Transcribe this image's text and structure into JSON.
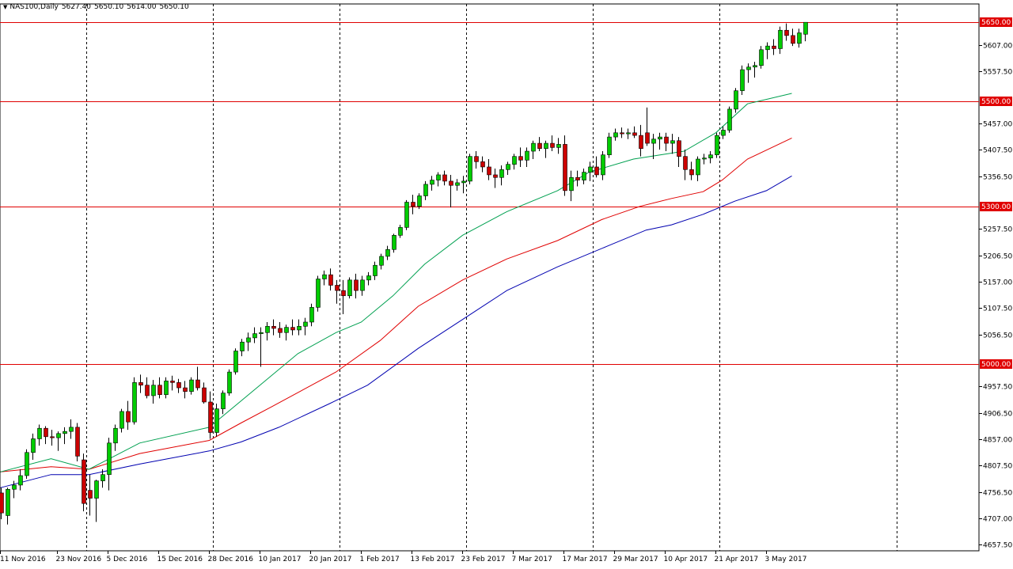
{
  "header": {
    "symbol": "NAS100,Daily",
    "open": "5627.40",
    "high": "5650.10",
    "low": "5614.00",
    "close": "5650.10"
  },
  "colors": {
    "background": "#ffffff",
    "axis": "#000000",
    "bull": "#00cc00",
    "bear": "#cc0000",
    "wick": "#000000",
    "hline": "#e00000",
    "ma_green": "#00a050",
    "ma_red": "#e00000",
    "ma_blue": "#0000b0",
    "label_bg": "#e00000",
    "label_text": "#ffffff"
  },
  "chart_data": {
    "type": "candlestick",
    "y_ticks": [
      "5607.00",
      "5557.50",
      "5457.00",
      "5407.50",
      "5356.50",
      "5257.50",
      "5206.50",
      "5157.00",
      "5107.50",
      "5056.50",
      "4957.50",
      "4906.50",
      "4857.00",
      "4807.50",
      "4756.50",
      "4707.00",
      "4657.50"
    ],
    "y_tick_values": [
      5607.0,
      5557.5,
      5457.0,
      5407.5,
      5356.5,
      5257.5,
      5206.5,
      5157.0,
      5107.5,
      5056.5,
      4957.5,
      4906.5,
      4857.0,
      4807.5,
      4756.5,
      4707.0,
      4657.5
    ],
    "ylim": [
      4645,
      5685
    ],
    "x_labels": [
      {
        "label": "11 Nov 2016",
        "bar": 0
      },
      {
        "label": "23 Nov 2016",
        "bar": 9
      },
      {
        "label": "5 Dec 2016",
        "bar": 17
      },
      {
        "label": "15 Dec 2016",
        "bar": 25
      },
      {
        "label": "28 Dec 2016",
        "bar": 33
      },
      {
        "label": "10 Jan 2017",
        "bar": 41
      },
      {
        "label": "20 Jan 2017",
        "bar": 49
      },
      {
        "label": "1 Feb 2017",
        "bar": 57
      },
      {
        "label": "13 Feb 2017",
        "bar": 65
      },
      {
        "label": "23 Feb 2017",
        "bar": 73
      },
      {
        "label": "7 Mar 2017",
        "bar": 81
      },
      {
        "label": "17 Mar 2017",
        "bar": 89
      },
      {
        "label": "29 Mar 2017",
        "bar": 97
      },
      {
        "label": "10 Apr 2017",
        "bar": 105
      },
      {
        "label": "21 Apr 2017",
        "bar": 113
      },
      {
        "label": "3 May 2017",
        "bar": 121
      }
    ],
    "vertical_lines_at_bar": [
      13.5,
      33.5,
      53.5,
      73.5,
      93.5,
      113.5,
      141.5
    ],
    "horizontal_levels": [
      {
        "value": 5650.0,
        "label": "5650.00"
      },
      {
        "value": 5500.0,
        "label": "5500.00"
      },
      {
        "value": 5300.0,
        "label": "5300.00"
      },
      {
        "value": 5000.0,
        "label": "5000.00"
      }
    ],
    "candles": [
      [
        4755,
        4765,
        4705,
        4717
      ],
      [
        4712,
        4765,
        4695,
        4762
      ],
      [
        4762,
        4778,
        4745,
        4770
      ],
      [
        4770,
        4800,
        4760,
        4788
      ],
      [
        4788,
        4838,
        4782,
        4832
      ],
      [
        4832,
        4868,
        4818,
        4858
      ],
      [
        4858,
        4885,
        4845,
        4878
      ],
      [
        4878,
        4882,
        4848,
        4862
      ],
      [
        4862,
        4875,
        4845,
        4860
      ],
      [
        4860,
        4872,
        4835,
        4868
      ],
      [
        4868,
        4880,
        4848,
        4872
      ],
      [
        4872,
        4895,
        4858,
        4880
      ],
      [
        4880,
        4888,
        4815,
        4825
      ],
      [
        4818,
        4830,
        4720,
        4735
      ],
      [
        4760,
        4790,
        4712,
        4745
      ],
      [
        4745,
        4780,
        4700,
        4778
      ],
      [
        4778,
        4800,
        4765,
        4790
      ],
      [
        4790,
        4860,
        4760,
        4850
      ],
      [
        4850,
        4885,
        4835,
        4878
      ],
      [
        4878,
        4915,
        4870,
        4910
      ],
      [
        4910,
        4930,
        4875,
        4890
      ],
      [
        4890,
        4975,
        4885,
        4965
      ],
      [
        4965,
        4980,
        4945,
        4960
      ],
      [
        4960,
        4975,
        4935,
        4940
      ],
      [
        4940,
        4970,
        4925,
        4960
      ],
      [
        4960,
        4975,
        4935,
        4942
      ],
      [
        4942,
        4975,
        4935,
        4968
      ],
      [
        4968,
        4978,
        4950,
        4965
      ],
      [
        4965,
        4972,
        4945,
        4955
      ],
      [
        4955,
        4968,
        4935,
        4948
      ],
      [
        4948,
        4975,
        4942,
        4970
      ],
      [
        4970,
        4995,
        4950,
        4955
      ],
      [
        4955,
        4965,
        4925,
        4928
      ],
      [
        4928,
        4948,
        4858,
        4870
      ],
      [
        4870,
        4925,
        4862,
        4915
      ],
      [
        4915,
        4950,
        4905,
        4945
      ],
      [
        4945,
        4990,
        4940,
        4985
      ],
      [
        4985,
        5030,
        4980,
        5025
      ],
      [
        5025,
        5048,
        5015,
        5042
      ],
      [
        5042,
        5060,
        5025,
        5050
      ],
      [
        5050,
        5070,
        5040,
        5058
      ],
      [
        5058,
        5070,
        4995,
        5060
      ],
      [
        5060,
        5080,
        5045,
        5072
      ],
      [
        5072,
        5085,
        5055,
        5068
      ],
      [
        5068,
        5080,
        5050,
        5060
      ],
      [
        5060,
        5075,
        5045,
        5070
      ],
      [
        5070,
        5085,
        5055,
        5065
      ],
      [
        5065,
        5085,
        5055,
        5072
      ],
      [
        5072,
        5088,
        5055,
        5080
      ],
      [
        5080,
        5115,
        5072,
        5108
      ],
      [
        5108,
        5168,
        5100,
        5162
      ],
      [
        5162,
        5178,
        5150,
        5170
      ],
      [
        5170,
        5182,
        5140,
        5150
      ],
      [
        5150,
        5160,
        5115,
        5140
      ],
      [
        5140,
        5160,
        5095,
        5130
      ],
      [
        5130,
        5165,
        5125,
        5160
      ],
      [
        5160,
        5172,
        5125,
        5140
      ],
      [
        5140,
        5168,
        5130,
        5160
      ],
      [
        5160,
        5175,
        5150,
        5168
      ],
      [
        5168,
        5195,
        5160,
        5188
      ],
      [
        5188,
        5210,
        5180,
        5205
      ],
      [
        5205,
        5225,
        5198,
        5218
      ],
      [
        5218,
        5248,
        5212,
        5245
      ],
      [
        5245,
        5265,
        5240,
        5260
      ],
      [
        5260,
        5312,
        5255,
        5308
      ],
      [
        5308,
        5322,
        5285,
        5300
      ],
      [
        5300,
        5325,
        5295,
        5320
      ],
      [
        5320,
        5348,
        5312,
        5342
      ],
      [
        5342,
        5358,
        5330,
        5350
      ],
      [
        5350,
        5365,
        5338,
        5360
      ],
      [
        5360,
        5368,
        5340,
        5348
      ],
      [
        5348,
        5360,
        5298,
        5340
      ],
      [
        5340,
        5352,
        5330,
        5345
      ],
      [
        5345,
        5358,
        5325,
        5348
      ],
      [
        5348,
        5400,
        5342,
        5395
      ],
      [
        5395,
        5405,
        5372,
        5385
      ],
      [
        5385,
        5395,
        5365,
        5375
      ],
      [
        5375,
        5390,
        5350,
        5360
      ],
      [
        5360,
        5372,
        5335,
        5355
      ],
      [
        5355,
        5378,
        5340,
        5370
      ],
      [
        5370,
        5385,
        5360,
        5380
      ],
      [
        5380,
        5400,
        5370,
        5395
      ],
      [
        5395,
        5412,
        5375,
        5388
      ],
      [
        5388,
        5412,
        5375,
        5405
      ],
      [
        5405,
        5425,
        5390,
        5420
      ],
      [
        5420,
        5432,
        5405,
        5410
      ],
      [
        5410,
        5425,
        5392,
        5420
      ],
      [
        5420,
        5435,
        5405,
        5412
      ],
      [
        5412,
        5430,
        5400,
        5418
      ],
      [
        5418,
        5435,
        5320,
        5330
      ],
      [
        5330,
        5368,
        5310,
        5355
      ],
      [
        5355,
        5368,
        5338,
        5350
      ],
      [
        5350,
        5372,
        5342,
        5365
      ],
      [
        5365,
        5385,
        5348,
        5375
      ],
      [
        5375,
        5395,
        5355,
        5360
      ],
      [
        5360,
        5405,
        5350,
        5398
      ],
      [
        5398,
        5440,
        5392,
        5432
      ],
      [
        5432,
        5448,
        5425,
        5440
      ],
      [
        5440,
        5450,
        5430,
        5438
      ],
      [
        5438,
        5448,
        5428,
        5440
      ],
      [
        5440,
        5452,
        5430,
        5435
      ],
      [
        5435,
        5455,
        5395,
        5410
      ],
      [
        5440,
        5488,
        5415,
        5420
      ],
      [
        5420,
        5438,
        5390,
        5428
      ],
      [
        5428,
        5440,
        5408,
        5432
      ],
      [
        5432,
        5440,
        5405,
        5420
      ],
      [
        5420,
        5438,
        5400,
        5425
      ],
      [
        5425,
        5432,
        5375,
        5395
      ],
      [
        5395,
        5408,
        5350,
        5370
      ],
      [
        5370,
        5385,
        5350,
        5360
      ],
      [
        5360,
        5395,
        5348,
        5390
      ],
      [
        5390,
        5400,
        5380,
        5392
      ],
      [
        5392,
        5405,
        5382,
        5398
      ],
      [
        5398,
        5440,
        5392,
        5435
      ],
      [
        5435,
        5452,
        5428,
        5445
      ],
      [
        5445,
        5490,
        5440,
        5485
      ],
      [
        5485,
        5525,
        5478,
        5520
      ],
      [
        5520,
        5568,
        5512,
        5560
      ],
      [
        5560,
        5572,
        5535,
        5565
      ],
      [
        5565,
        5575,
        5545,
        5568
      ],
      [
        5568,
        5605,
        5562,
        5598
      ],
      [
        5598,
        5612,
        5580,
        5605
      ],
      [
        5605,
        5618,
        5588,
        5600
      ],
      [
        5600,
        5642,
        5590,
        5635
      ],
      [
        5635,
        5648,
        5615,
        5625
      ],
      [
        5625,
        5638,
        5605,
        5610
      ],
      [
        5610,
        5638,
        5602,
        5630
      ],
      [
        5627.4,
        5650.1,
        5614,
        5650.1
      ]
    ],
    "ma_green": [
      [
        0,
        4795
      ],
      [
        8,
        4820
      ],
      [
        14,
        4800
      ],
      [
        22,
        4850
      ],
      [
        33,
        4880
      ],
      [
        40,
        4950
      ],
      [
        47,
        5020
      ],
      [
        53,
        5060
      ],
      [
        57,
        5080
      ],
      [
        62,
        5130
      ],
      [
        67,
        5190
      ],
      [
        73,
        5245
      ],
      [
        80,
        5290
      ],
      [
        88,
        5330
      ],
      [
        93,
        5365
      ],
      [
        100,
        5390
      ],
      [
        108,
        5405
      ],
      [
        113,
        5440
      ],
      [
        118,
        5495
      ],
      [
        125,
        5515
      ]
    ],
    "ma_red": [
      [
        0,
        4795
      ],
      [
        8,
        4805
      ],
      [
        14,
        4800
      ],
      [
        22,
        4830
      ],
      [
        33,
        4855
      ],
      [
        38,
        4888
      ],
      [
        43,
        4920
      ],
      [
        53,
        4985
      ],
      [
        60,
        5045
      ],
      [
        66,
        5110
      ],
      [
        73,
        5160
      ],
      [
        80,
        5200
      ],
      [
        88,
        5235
      ],
      [
        95,
        5275
      ],
      [
        101,
        5300
      ],
      [
        106,
        5315
      ],
      [
        111,
        5328
      ],
      [
        114,
        5350
      ],
      [
        118,
        5390
      ],
      [
        125,
        5430
      ]
    ],
    "ma_blue": [
      [
        0,
        4765
      ],
      [
        8,
        4790
      ],
      [
        14,
        4790
      ],
      [
        22,
        4810
      ],
      [
        33,
        4835
      ],
      [
        38,
        4852
      ],
      [
        44,
        4880
      ],
      [
        52,
        4925
      ],
      [
        58,
        4960
      ],
      [
        66,
        5030
      ],
      [
        73,
        5085
      ],
      [
        80,
        5140
      ],
      [
        88,
        5185
      ],
      [
        96,
        5225
      ],
      [
        102,
        5255
      ],
      [
        106,
        5265
      ],
      [
        111,
        5285
      ],
      [
        116,
        5310
      ],
      [
        121,
        5330
      ],
      [
        125,
        5358
      ]
    ]
  }
}
